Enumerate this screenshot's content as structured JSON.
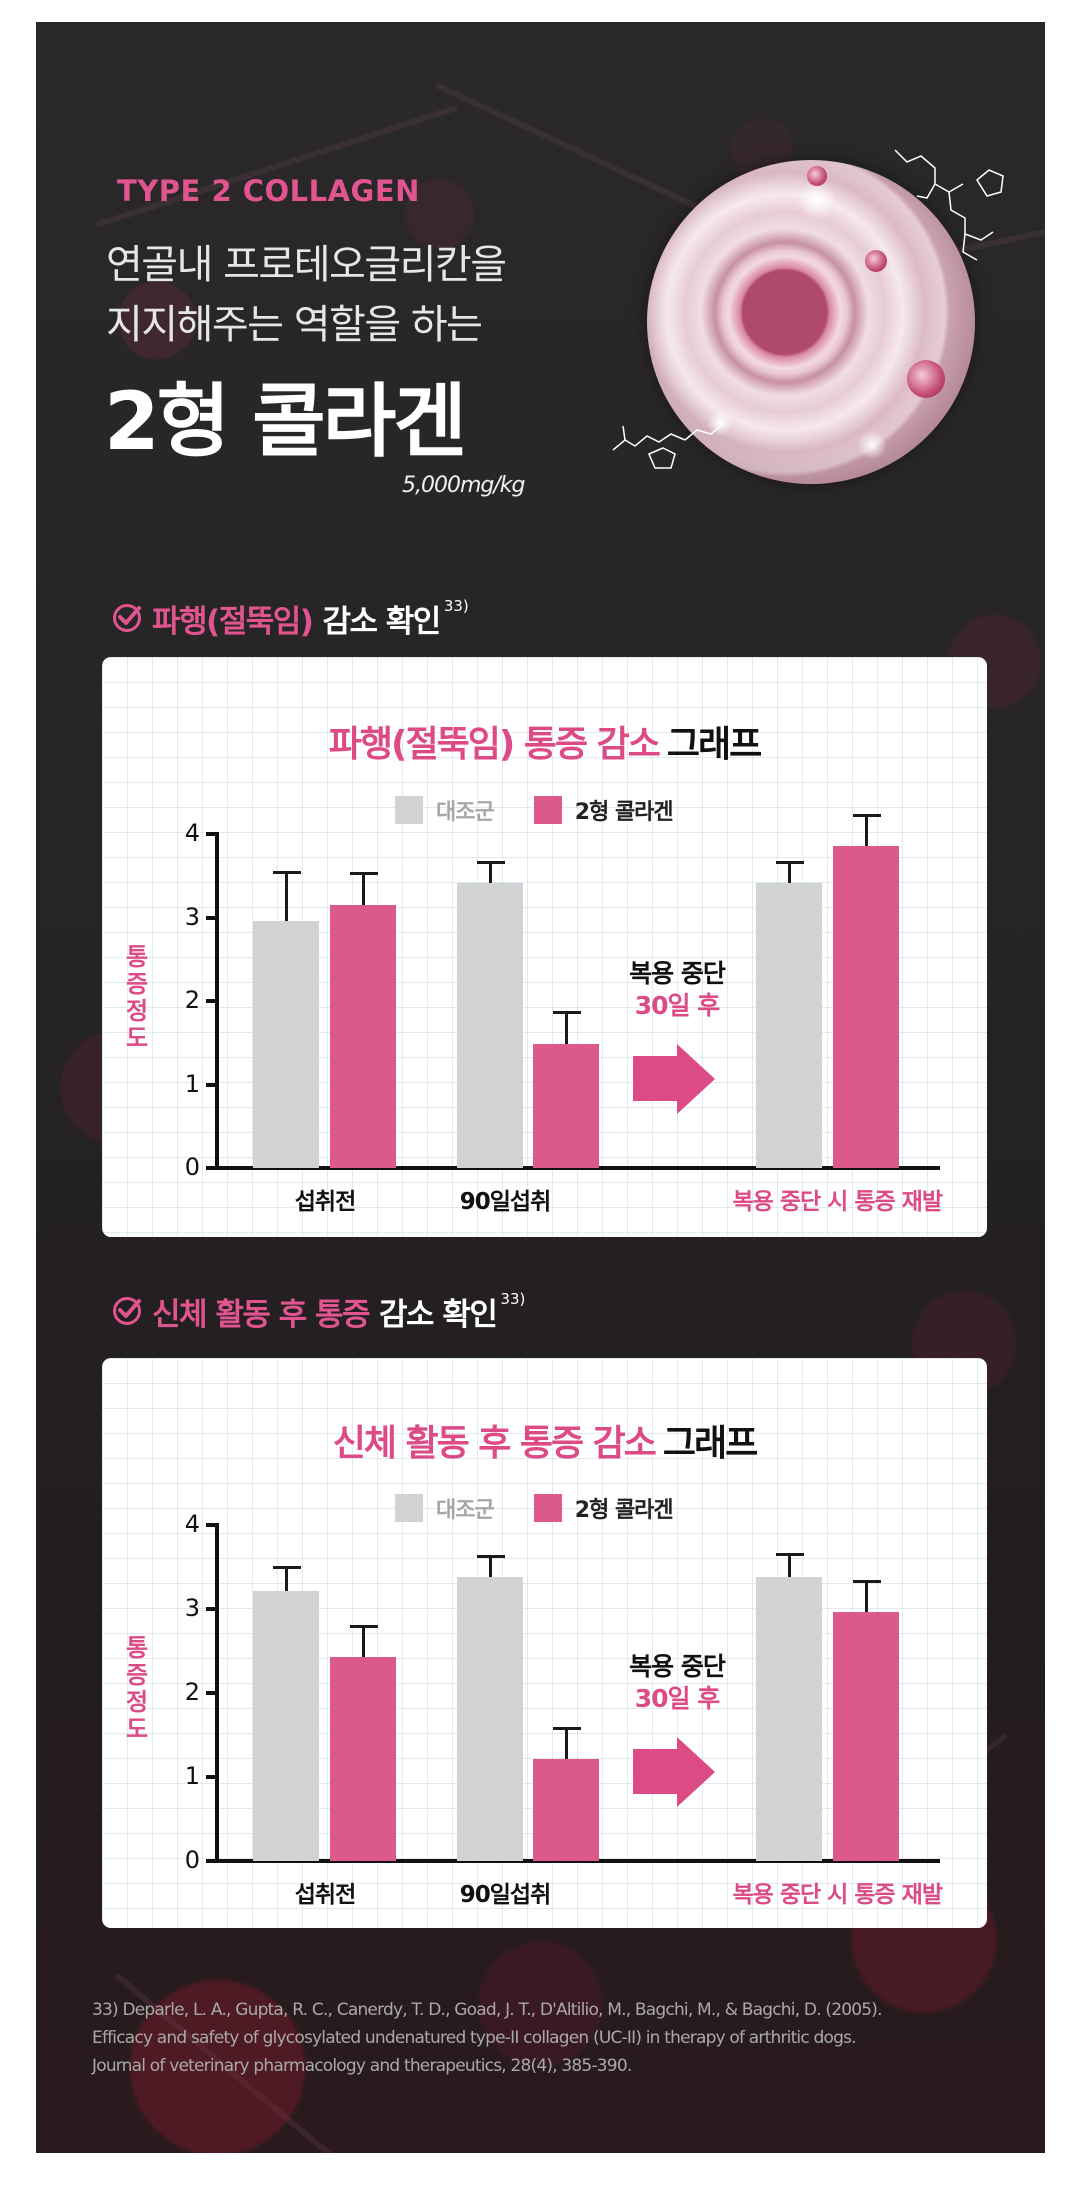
{
  "colors": {
    "brand_pink": "#dd4b87",
    "bar_pink": "#dc5a8b",
    "bar_gray": "#d2d3d5",
    "panel_bg": "#262425",
    "text_dark": "#111111"
  },
  "hero": {
    "eyebrow": "TYPE 2 COLLAGEN",
    "line1": "연골내 프로테오글리칸을",
    "line2": "지지해주는 역할을 하는",
    "headline": "2형 콜라겐",
    "dose": "5,000mg/kg",
    "image_alt": "collagen-molecule-orb-illustration"
  },
  "sections": [
    {
      "heading_pink": "파행(절뚝임)",
      "heading_white": "감소 확인",
      "footnote": "33)",
      "check_icon": "check-circle-icon"
    },
    {
      "heading_pink": "신체 활동 후 통증",
      "heading_white": "감소 확인",
      "footnote": "33)",
      "check_icon": "check-circle-icon"
    }
  ],
  "chart_common": {
    "legend": [
      "대조군",
      "2형 콜라겐"
    ],
    "ylabel": "통증정도",
    "yticks": [
      "0",
      "1",
      "2",
      "3",
      "4"
    ],
    "xlabels": [
      "섭취전",
      "90일섭취",
      "복용 중단 시 통증 재발"
    ],
    "annotation_line1": "복용 중단",
    "annotation_line2": "30일 후",
    "arrow_icon": "right-arrow-icon"
  },
  "chart_data": [
    {
      "type": "bar",
      "title": "파행(절뚝임) 통증 감소 그래프",
      "title_pink": "파행(절뚝임) 통증 감소",
      "title_dark": "그래프",
      "xlabel": "",
      "ylabel": "통증정도",
      "ylim": [
        0,
        4
      ],
      "yticks": [
        0,
        1,
        2,
        3,
        4
      ],
      "grid": false,
      "legend_position": "top",
      "categories": [
        "섭취전",
        "90일섭취",
        "복용 중단 시 통증 재발"
      ],
      "series": [
        {
          "name": "대조군",
          "color": "#d2d3d5",
          "values": [
            2.96,
            3.41,
            3.41
          ],
          "error_upper": [
            3.54,
            3.66,
            3.66
          ]
        },
        {
          "name": "2형 콜라겐",
          "color": "#dc5a8b",
          "values": [
            3.15,
            1.48,
            3.86
          ],
          "error_upper": [
            3.53,
            1.87,
            4.23
          ]
        }
      ],
      "annotations": [
        {
          "text": "복용 중단 30일 후",
          "position": "between 90일섭취 and 복용 중단 시 통증 재발",
          "arrow": "right"
        }
      ]
    },
    {
      "type": "bar",
      "title": "신체 활동 후 통증 감소 그래프",
      "title_pink": "신체 활동 후 통증 감소",
      "title_dark": "그래프",
      "xlabel": "",
      "ylabel": "통증정도",
      "ylim": [
        0,
        4
      ],
      "yticks": [
        0,
        1,
        2,
        3,
        4
      ],
      "grid": false,
      "legend_position": "top",
      "categories": [
        "섭취전",
        "90일섭취",
        "복용 중단 시 통증 재발"
      ],
      "series": [
        {
          "name": "대조군",
          "color": "#d2d3d5",
          "values": [
            3.21,
            3.38,
            3.38
          ],
          "error_upper": [
            3.5,
            3.63,
            3.65
          ]
        },
        {
          "name": "2형 콜라겐",
          "color": "#dc5a8b",
          "values": [
            2.43,
            1.21,
            2.96
          ],
          "error_upper": [
            2.8,
            1.58,
            3.33
          ]
        }
      ],
      "annotations": [
        {
          "text": "복용 중단 30일 후",
          "position": "between 90일섭취 and 복용 중단 시 통증 재발",
          "arrow": "right"
        }
      ]
    }
  ],
  "reference": {
    "line1": "33) Deparle, L. A., Gupta, R. C., Canerdy, T. D., Goad, J. T., D'Altilio, M., Bagchi, M., & Bagchi, D. (2005).",
    "line2": "Efficacy and safety of glycosylated undenatured type-II collagen (UC-II) in therapy of arthritic dogs.",
    "line3": "Journal of veterinary pharmacology and therapeutics, 28(4), 385-390."
  }
}
